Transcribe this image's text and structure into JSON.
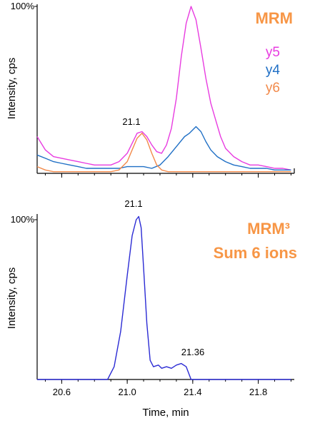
{
  "chart_data": [
    {
      "type": "line",
      "title": "MRM",
      "ylabel": "Intensity, cps",
      "ytick": "100%",
      "xlim": [
        20.45,
        22.02
      ],
      "ylim": [
        0,
        100
      ],
      "peak_labels": [
        {
          "text": "21.1",
          "x": 21.1
        }
      ],
      "legend_position": "right",
      "series": [
        {
          "name": "y5",
          "color": "#E83CE0",
          "x": [
            20.45,
            20.5,
            20.55,
            20.6,
            20.65,
            20.7,
            20.75,
            20.8,
            20.85,
            20.9,
            20.95,
            21.0,
            21.03,
            21.06,
            21.09,
            21.12,
            21.15,
            21.18,
            21.21,
            21.24,
            21.27,
            21.3,
            21.33,
            21.36,
            21.39,
            21.42,
            21.45,
            21.48,
            21.51,
            21.54,
            21.57,
            21.6,
            21.65,
            21.7,
            21.75,
            21.8,
            21.85,
            21.9,
            21.95,
            22.0
          ],
          "values": [
            22,
            14,
            10,
            9,
            8,
            7,
            6,
            5,
            5,
            5,
            7,
            12,
            18,
            24,
            25,
            22,
            17,
            13,
            12,
            17,
            27,
            45,
            70,
            90,
            100,
            92,
            75,
            57,
            42,
            32,
            22,
            15,
            10,
            7,
            5,
            5,
            4,
            3,
            3,
            2
          ]
        },
        {
          "name": "y4",
          "color": "#1F6FC5",
          "x": [
            20.45,
            20.5,
            20.55,
            20.6,
            20.65,
            20.7,
            20.75,
            20.8,
            20.85,
            20.9,
            20.95,
            21.0,
            21.05,
            21.1,
            21.15,
            21.2,
            21.25,
            21.3,
            21.35,
            21.38,
            21.42,
            21.45,
            21.48,
            21.51,
            21.55,
            21.6,
            21.65,
            21.7,
            21.75,
            21.8,
            21.85,
            21.9,
            21.95,
            22.0
          ],
          "values": [
            11,
            9,
            7,
            6,
            5,
            4,
            3,
            3,
            3,
            3,
            3,
            4,
            4,
            4,
            3,
            5,
            10,
            16,
            22,
            24,
            28,
            25,
            19,
            14,
            10,
            7,
            5,
            4,
            3,
            3,
            3,
            2,
            2,
            2
          ]
        },
        {
          "name": "y6",
          "color": "#F28A4B",
          "x": [
            20.45,
            20.5,
            20.55,
            20.6,
            20.7,
            20.8,
            20.9,
            20.95,
            21.0,
            21.03,
            21.06,
            21.09,
            21.12,
            21.15,
            21.18,
            21.21,
            21.25,
            21.3,
            21.4,
            21.5,
            21.6,
            21.7,
            21.8,
            21.9,
            22.0
          ],
          "values": [
            4,
            2,
            1,
            1,
            1,
            1,
            1,
            2,
            7,
            14,
            21,
            24,
            20,
            12,
            5,
            2,
            1,
            1,
            1,
            1,
            1,
            1,
            1,
            1,
            1
          ]
        }
      ]
    },
    {
      "type": "line",
      "title": [
        "MRM³",
        "Sum 6 ions"
      ],
      "xlabel": "Time, min",
      "ylabel": "Intensity, cps",
      "ytick": "100%",
      "xlim": [
        20.45,
        22.02
      ],
      "ylim": [
        0,
        100
      ],
      "xticks": [
        20.6,
        21.0,
        21.4,
        21.8
      ],
      "xtick_labels": [
        "20.6",
        "21.0",
        "21.4",
        "21.8"
      ],
      "peak_labels": [
        {
          "text": "21.1",
          "x": 21.07
        },
        {
          "text": "21.36",
          "x": 21.33
        }
      ],
      "series": [
        {
          "name": "",
          "color": "#2B2BD4",
          "x": [
            20.45,
            20.6,
            20.8,
            20.88,
            20.92,
            20.96,
            21.0,
            21.03,
            21.055,
            21.07,
            21.085,
            21.1,
            21.12,
            21.14,
            21.16,
            21.19,
            21.21,
            21.24,
            21.27,
            21.3,
            21.33,
            21.36,
            21.39,
            21.45,
            21.6,
            21.8,
            22.0
          ],
          "values": [
            0,
            0,
            0,
            0,
            8,
            30,
            65,
            90,
            100,
            102,
            95,
            70,
            35,
            12,
            8,
            9,
            7,
            8,
            7,
            9,
            10,
            8,
            0,
            0,
            0,
            0,
            0
          ]
        }
      ]
    }
  ]
}
